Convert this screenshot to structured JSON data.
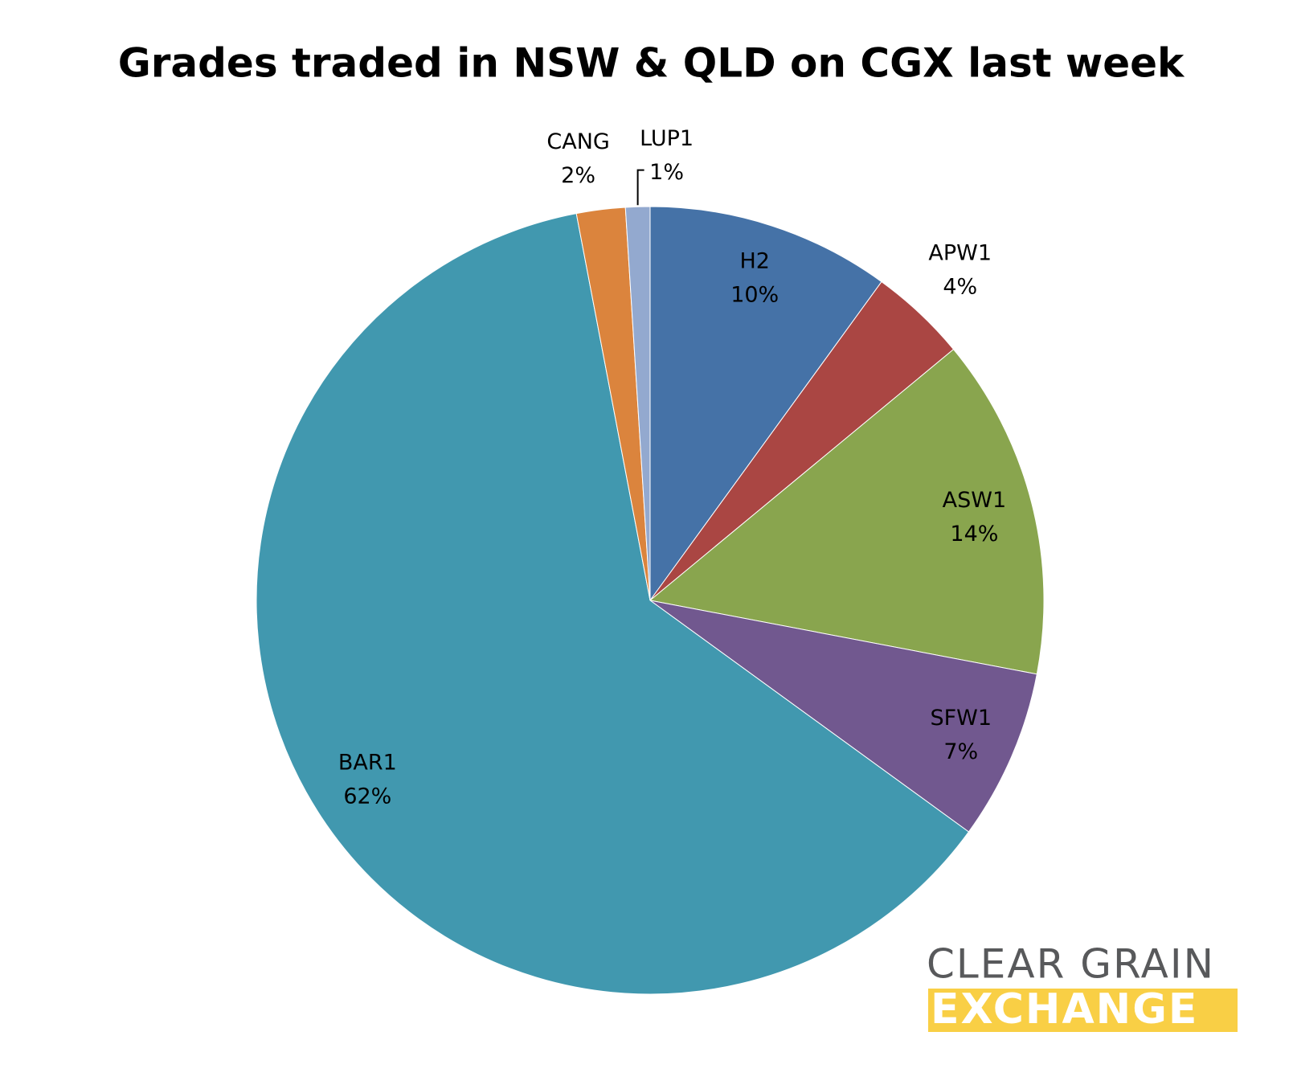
{
  "chart_data": {
    "type": "pie",
    "title": "Grades traded in NSW & QLD on CGX last week",
    "categories": [
      "H2",
      "APW1",
      "ASW1",
      "SFW1",
      "BAR1",
      "CANG",
      "LUP1"
    ],
    "values": [
      10,
      4,
      14,
      7,
      62,
      2,
      1
    ],
    "value_labels": [
      "10%",
      "4%",
      "14%",
      "7%",
      "62%",
      "2%",
      "1%"
    ],
    "colors": [
      "#4572a7",
      "#aa4643",
      "#89a54e",
      "#71588f",
      "#4198af",
      "#db843d",
      "#93a9cf"
    ]
  },
  "logo": {
    "line1": "CLEAR GRAIN",
    "line2": "EXCHANGE"
  }
}
